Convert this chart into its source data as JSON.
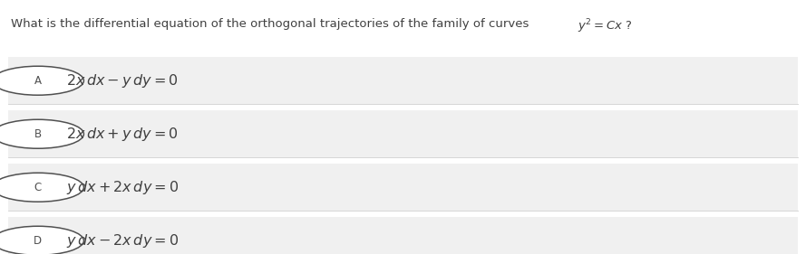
{
  "title_plain": "What is the differential equation of the orthogonal trajectories of the family of curves ",
  "title_math": "$y^2 = Cx$ ?",
  "options": [
    {
      "label": "A",
      "text": "$2x\\,dx - y\\,dy = 0$"
    },
    {
      "label": "B",
      "text": "$2x\\,dx + y\\,dy = 0$"
    },
    {
      "label": "C",
      "text": "$y\\,dx + 2x\\,dy = 0$"
    },
    {
      "label": "D",
      "text": "$y\\,dx - 2x\\,dy = 0$"
    }
  ],
  "bg_color": "#ffffff",
  "option_bg_color": "#f0f0f0",
  "text_color": "#404040",
  "circle_color": "#505050",
  "line_color": "#d0d0d0",
  "font_size_title": 9.5,
  "font_size_option": 11.5,
  "font_size_label": 8.5
}
